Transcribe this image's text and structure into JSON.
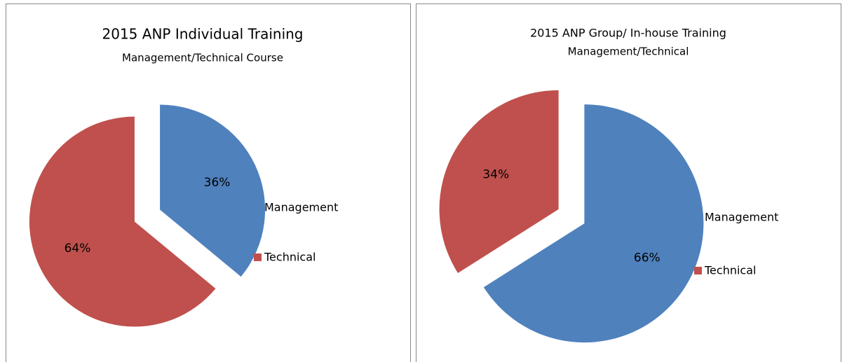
{
  "chart_data": [
    {
      "type": "pie",
      "title": "2015 ANP Individual Training",
      "subtitle": "Management/Technical Course",
      "categories": [
        "Management",
        "Technical"
      ],
      "values": [
        36,
        64
      ],
      "value_labels": [
        "36%",
        "64%"
      ],
      "colors": [
        "#4f81bd",
        "#c0504d"
      ]
    },
    {
      "type": "pie",
      "title": "2015 ANP Group/ In-house Training",
      "subtitle": "Management/Technical",
      "categories": [
        "Management",
        "Technical"
      ],
      "values": [
        66,
        34
      ],
      "value_labels": [
        "66%",
        "34%"
      ],
      "colors": [
        "#4f81bd",
        "#c0504d"
      ]
    }
  ]
}
